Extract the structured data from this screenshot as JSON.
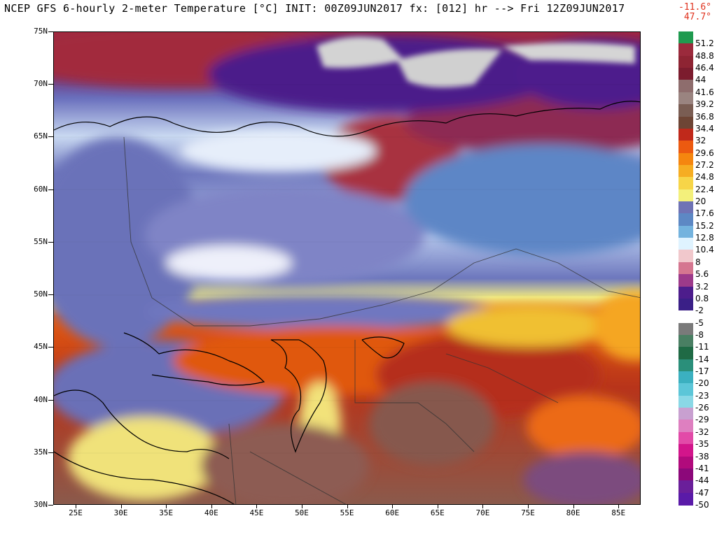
{
  "title": "NCEP GFS 6-hourly 2-meter Temperature [°C] INIT: 00Z09JUN2017 fx: [012] hr --> Fri 12Z09JUN2017",
  "min_label": "-11.6°",
  "max_label": "47.7°",
  "lat_labels": [
    "75N",
    "70N",
    "65N",
    "60N",
    "55N",
    "50N",
    "45N",
    "40N",
    "35N",
    "30N"
  ],
  "lon_labels": [
    "25E",
    "30E",
    "35E",
    "40E",
    "45E",
    "50E",
    "55E",
    "60E",
    "65E",
    "70E",
    "75E",
    "80E",
    "85E"
  ],
  "colorbar_labels": [
    "51.2",
    "48.8",
    "46.4",
    "44",
    "41.6",
    "39.2",
    "36.8",
    "34.4",
    "32",
    "29.6",
    "27.2",
    "24.8",
    "22.4",
    "20",
    "17.6",
    "15.2",
    "12.8",
    "10.4",
    "8",
    "5.6",
    "3.2",
    "0.8",
    "-2",
    "-5",
    "-8",
    "-11",
    "-14",
    "-17",
    "-20",
    "-23",
    "-26",
    "-29",
    "-32",
    "-35",
    "-38",
    "-41",
    "-44",
    "-47",
    "-50"
  ],
  "colorbar_colors": [
    "#1f9a4f",
    "#9b2a3c",
    "#8e2433",
    "#7c1c2e",
    "#8e6d6d",
    "#9a8480",
    "#7a5d53",
    "#6e4535",
    "#c0291b",
    "#ec5a10",
    "#f5860f",
    "#f6ad22",
    "#f7d548",
    "#f3f07b",
    "#6f73b5",
    "#5d88c4",
    "#74b3de",
    "#dff3ff",
    "#f1c8cc",
    "#d57690",
    "#9d3a8a",
    "#4d1d8c",
    "#3a1f87",
    "#ffffff",
    "#7a7a7a",
    "#4a7f63",
    "#1f6a45",
    "#2a8f7a",
    "#3bb0c0",
    "#5cc6d8",
    "#8ad8e6",
    "#c8a0d0",
    "#de7fc0",
    "#e24aa8",
    "#d2158b",
    "#b10a7c",
    "#8c087a",
    "#6a1f9a",
    "#5a1aa8"
  ],
  "map": {
    "colors": {
      "polar_purple": "#4b1d8a",
      "polar_red": "#a2283f",
      "ice": "#d3d3d3",
      "cold_blue": "#6672b8",
      "light_blue": "#9fb6e0",
      "pale": "#e8eef8",
      "warm_orange": "#e45a0f",
      "hot_red": "#b02414",
      "yellow": "#f2e67a",
      "brown": "#7d5a4c"
    }
  }
}
